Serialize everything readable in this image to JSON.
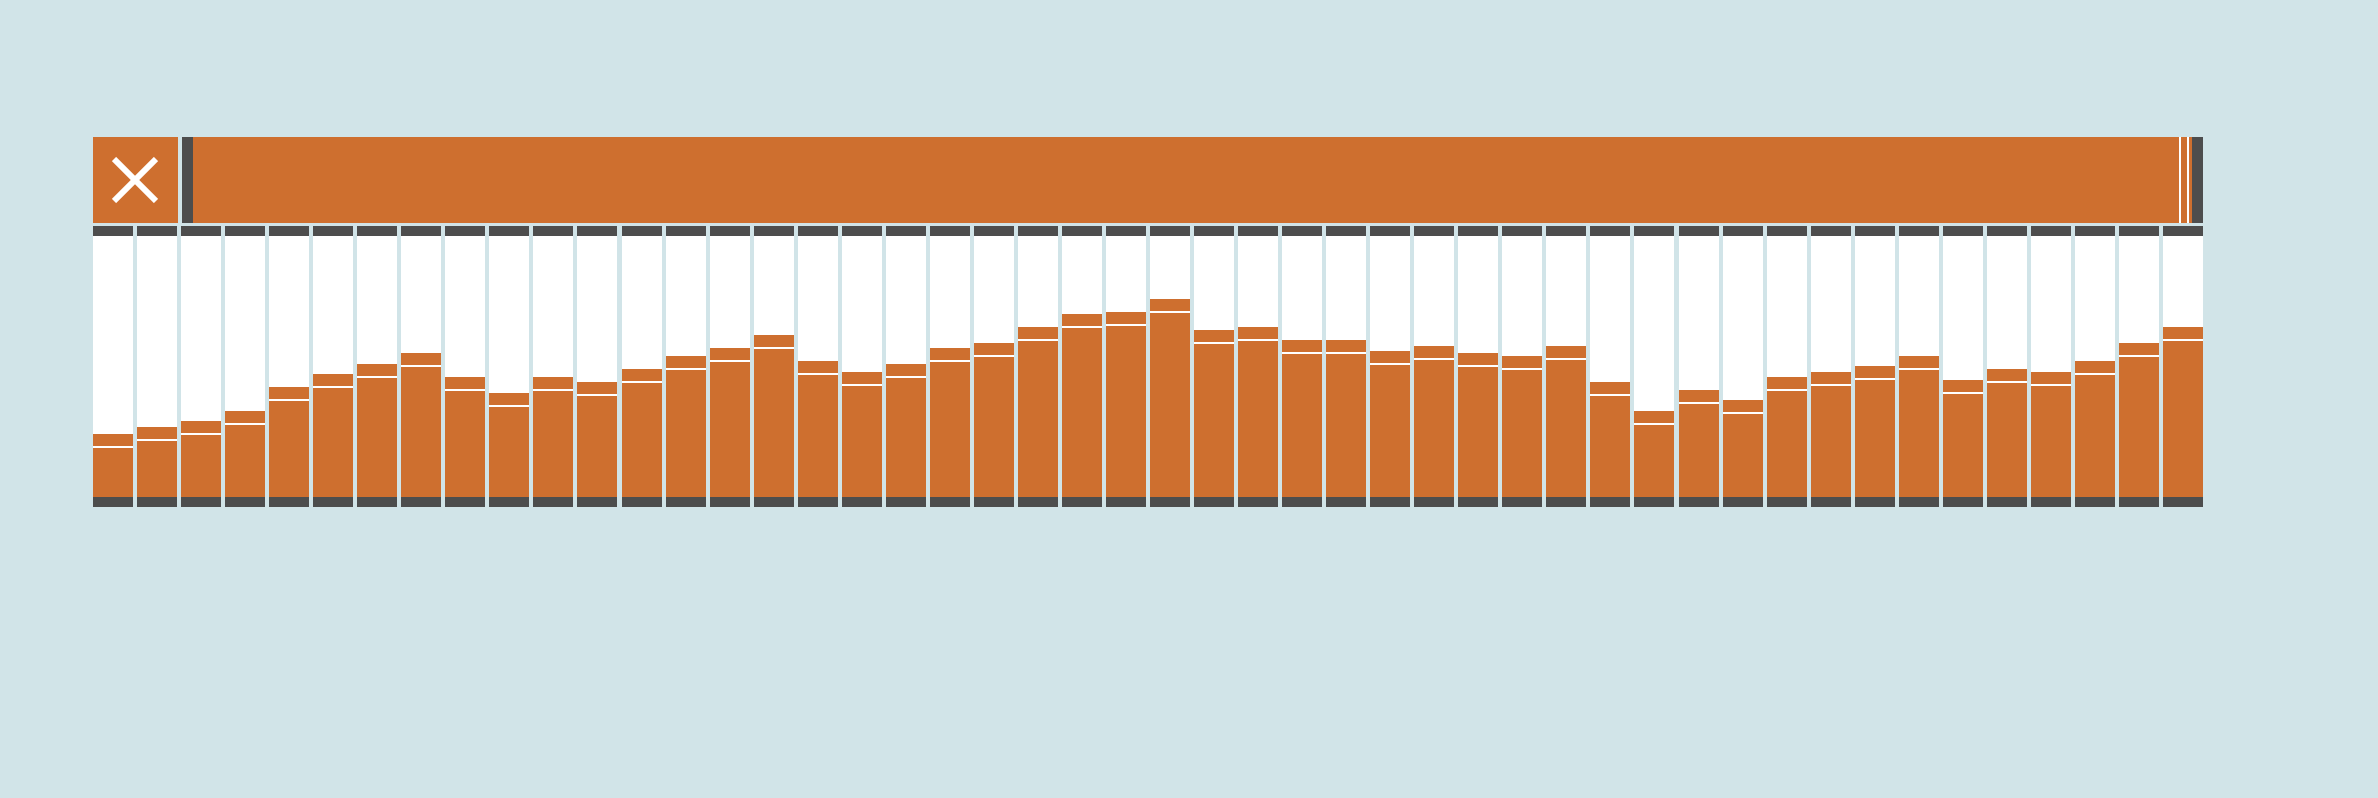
{
  "colors": {
    "background": "#d1e4e8",
    "accent": "#ce6f2f",
    "frame": "#4d4d4d",
    "cell": "#ffffff"
  },
  "close_button": {
    "icon": "close-icon"
  },
  "range": {
    "start": 0,
    "end": 1
  },
  "chart_data": {
    "type": "bar",
    "series": [
      {
        "values": [
          0.24,
          0.27,
          0.29,
          0.33,
          0.42,
          0.47,
          0.51,
          0.55,
          0.46,
          0.4,
          0.46,
          0.44,
          0.49,
          0.54,
          0.57,
          0.62,
          0.52,
          0.48,
          0.51,
          0.57,
          0.59,
          0.65,
          0.7,
          0.71,
          0.76,
          0.64,
          0.65,
          0.6,
          0.6,
          0.56,
          0.58,
          0.55,
          0.54,
          0.58,
          0.44,
          0.33,
          0.41,
          0.37,
          0.46,
          0.48,
          0.5,
          0.54,
          0.45,
          0.49,
          0.48,
          0.52,
          0.59,
          0.65
        ]
      }
    ]
  }
}
